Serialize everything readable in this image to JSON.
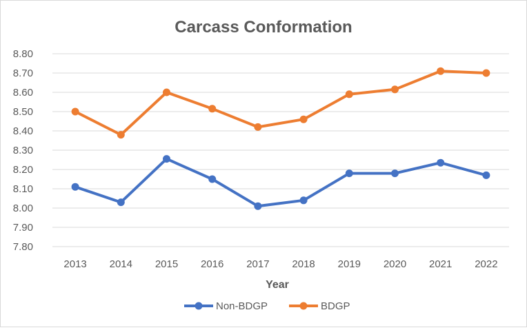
{
  "chart_data": {
    "type": "line",
    "title": "Carcass Conformation",
    "xlabel": "Year",
    "ylabel": "",
    "categories": [
      "2013",
      "2014",
      "2015",
      "2016",
      "2017",
      "2018",
      "2019",
      "2020",
      "2021",
      "2022"
    ],
    "ylim": [
      7.8,
      8.8
    ],
    "yticks": [
      "7.80",
      "7.90",
      "8.00",
      "8.10",
      "8.20",
      "8.30",
      "8.40",
      "8.50",
      "8.60",
      "8.70",
      "8.80"
    ],
    "grid": true,
    "legend_position": "bottom",
    "series": [
      {
        "name": "Non-BDGP",
        "color": "#4472c4",
        "values": [
          8.11,
          8.03,
          8.255,
          8.15,
          8.01,
          8.04,
          8.18,
          8.18,
          8.235,
          8.17
        ]
      },
      {
        "name": "BDGP",
        "color": "#ed7d31",
        "values": [
          8.5,
          8.38,
          8.6,
          8.515,
          8.42,
          8.46,
          8.59,
          8.615,
          8.71,
          8.7
        ]
      }
    ]
  }
}
